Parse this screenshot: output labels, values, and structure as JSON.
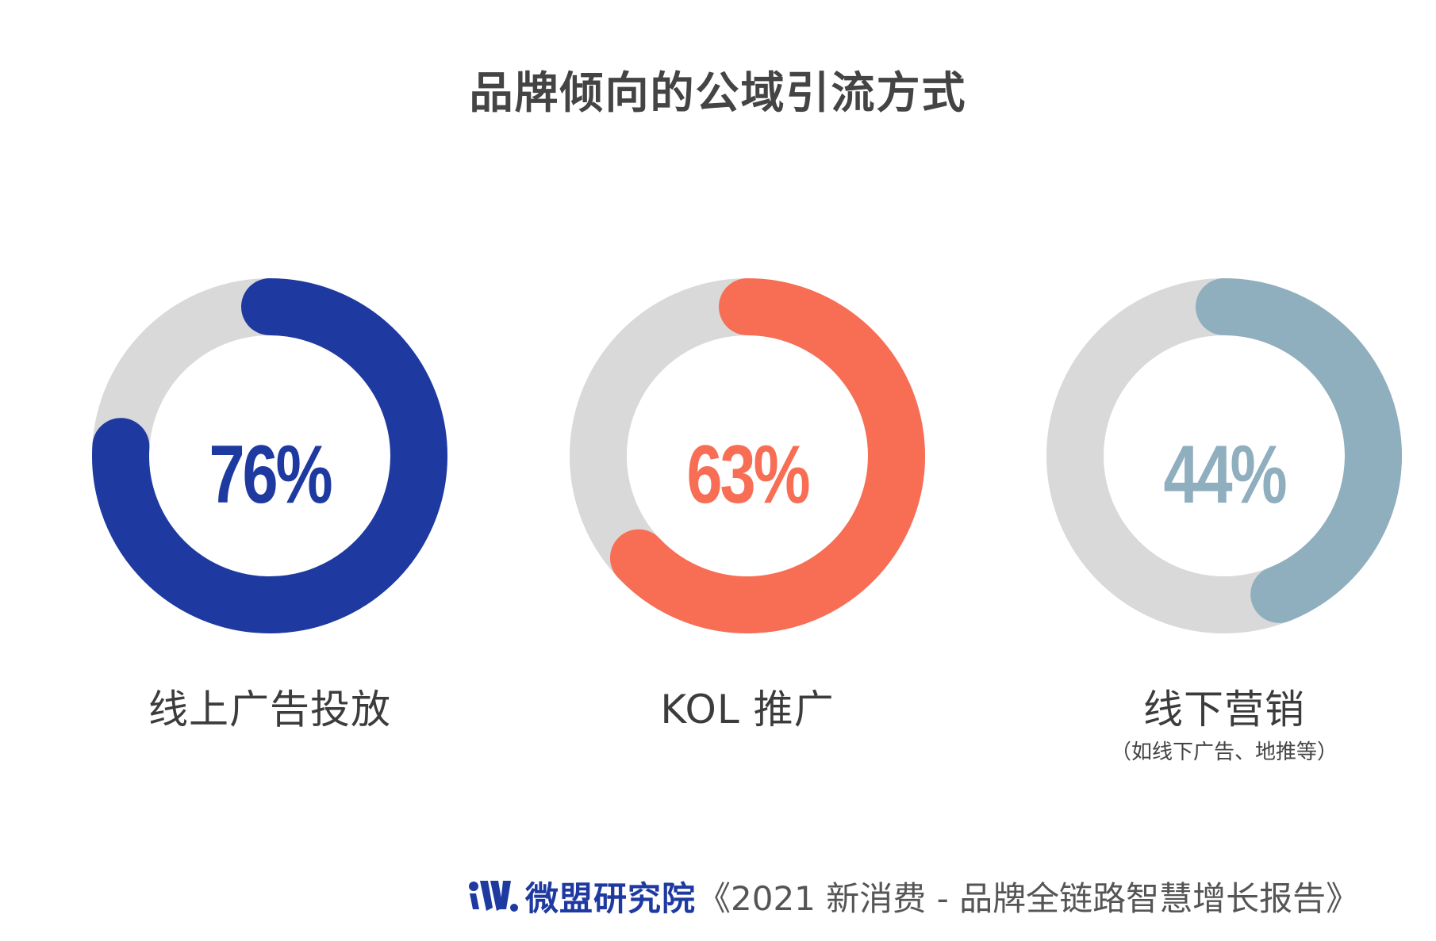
{
  "title": "品牌倾向的公域引流方式",
  "chart_data": {
    "type": "pie",
    "title": "品牌倾向的公域引流方式",
    "unit": "%",
    "track_color": "#d9d9d9",
    "series": [
      {
        "name": "线上广告投放",
        "sublabel": "",
        "value": 76,
        "display": "76%",
        "color": "#1e3aa1"
      },
      {
        "name": "KOL 推广",
        "sublabel": "",
        "value": 63,
        "display": "63%",
        "color": "#f76e55"
      },
      {
        "name": "线下营销",
        "sublabel": "（如线下广告、地推等）",
        "value": 44,
        "display": "44%",
        "color": "#8faebe"
      }
    ]
  },
  "footer": {
    "brand": "微盟研究院",
    "report": "《2021 新消费 - 品牌全链路智慧增长报告》",
    "brand_color": "#1e3aa1"
  }
}
